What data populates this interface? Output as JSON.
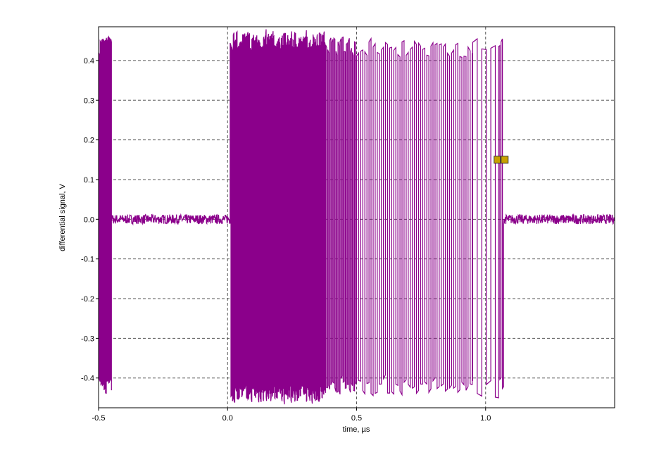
{
  "chart_data": {
    "type": "line",
    "title": "",
    "xlabel": "time, µs",
    "ylabel": "differential signal, V",
    "xlim": [
      -0.5,
      1.5
    ],
    "ylim": [
      -0.475,
      0.485
    ],
    "x_ticks": [
      -0.5,
      0.0,
      0.5,
      1.0
    ],
    "x_tick_labels": [
      "-0.5",
      "0.0",
      "0.5",
      "1.0"
    ],
    "y_ticks": [
      -0.4,
      -0.3,
      -0.2,
      -0.1,
      0.0,
      0.1,
      0.2,
      0.3,
      0.4
    ],
    "y_tick_labels": [
      "-0.4",
      "-0.3",
      "-0.2",
      "-0.1",
      "0.0",
      "0.1",
      "0.2",
      "0.3",
      "0.4"
    ],
    "grid": "dashed",
    "line_color": "#8b008b",
    "marker_color": "#c8a000",
    "series": [
      {
        "segments": [
          {
            "kind": "burst",
            "x": [
              -0.5,
              -0.45
            ],
            "period": 0.006,
            "high": 0.44,
            "low": -0.42
          },
          {
            "kind": "idle",
            "x": [
              -0.45,
              0.01
            ],
            "level": 0.0,
            "noise": 0.012
          },
          {
            "kind": "burst",
            "x": [
              0.01,
              0.1
            ],
            "period": 0.006,
            "high": 0.45,
            "low": -0.44
          },
          {
            "kind": "burst",
            "x": [
              0.1,
              0.38
            ],
            "period": 0.003,
            "high": 0.45,
            "low": -0.44
          },
          {
            "kind": "burst",
            "x": [
              0.38,
              0.5
            ],
            "period": 0.008,
            "high": 0.44,
            "low": -0.42
          },
          {
            "kind": "burst",
            "x": [
              0.5,
              0.95
            ],
            "period": 0.016,
            "high": 0.43,
            "low": -0.42
          },
          {
            "kind": "burst",
            "x": [
              0.95,
              1.05
            ],
            "period": 0.035,
            "high": 0.44,
            "low": -0.43
          },
          {
            "kind": "burst",
            "x": [
              1.05,
              1.07
            ],
            "period": 0.01,
            "high": 0.44,
            "low": -0.42
          },
          {
            "kind": "idle",
            "x": [
              1.07,
              1.5
            ],
            "level": 0.0,
            "noise": 0.012
          }
        ]
      }
    ],
    "marker": {
      "x": 1.06,
      "y": 0.15
    }
  }
}
